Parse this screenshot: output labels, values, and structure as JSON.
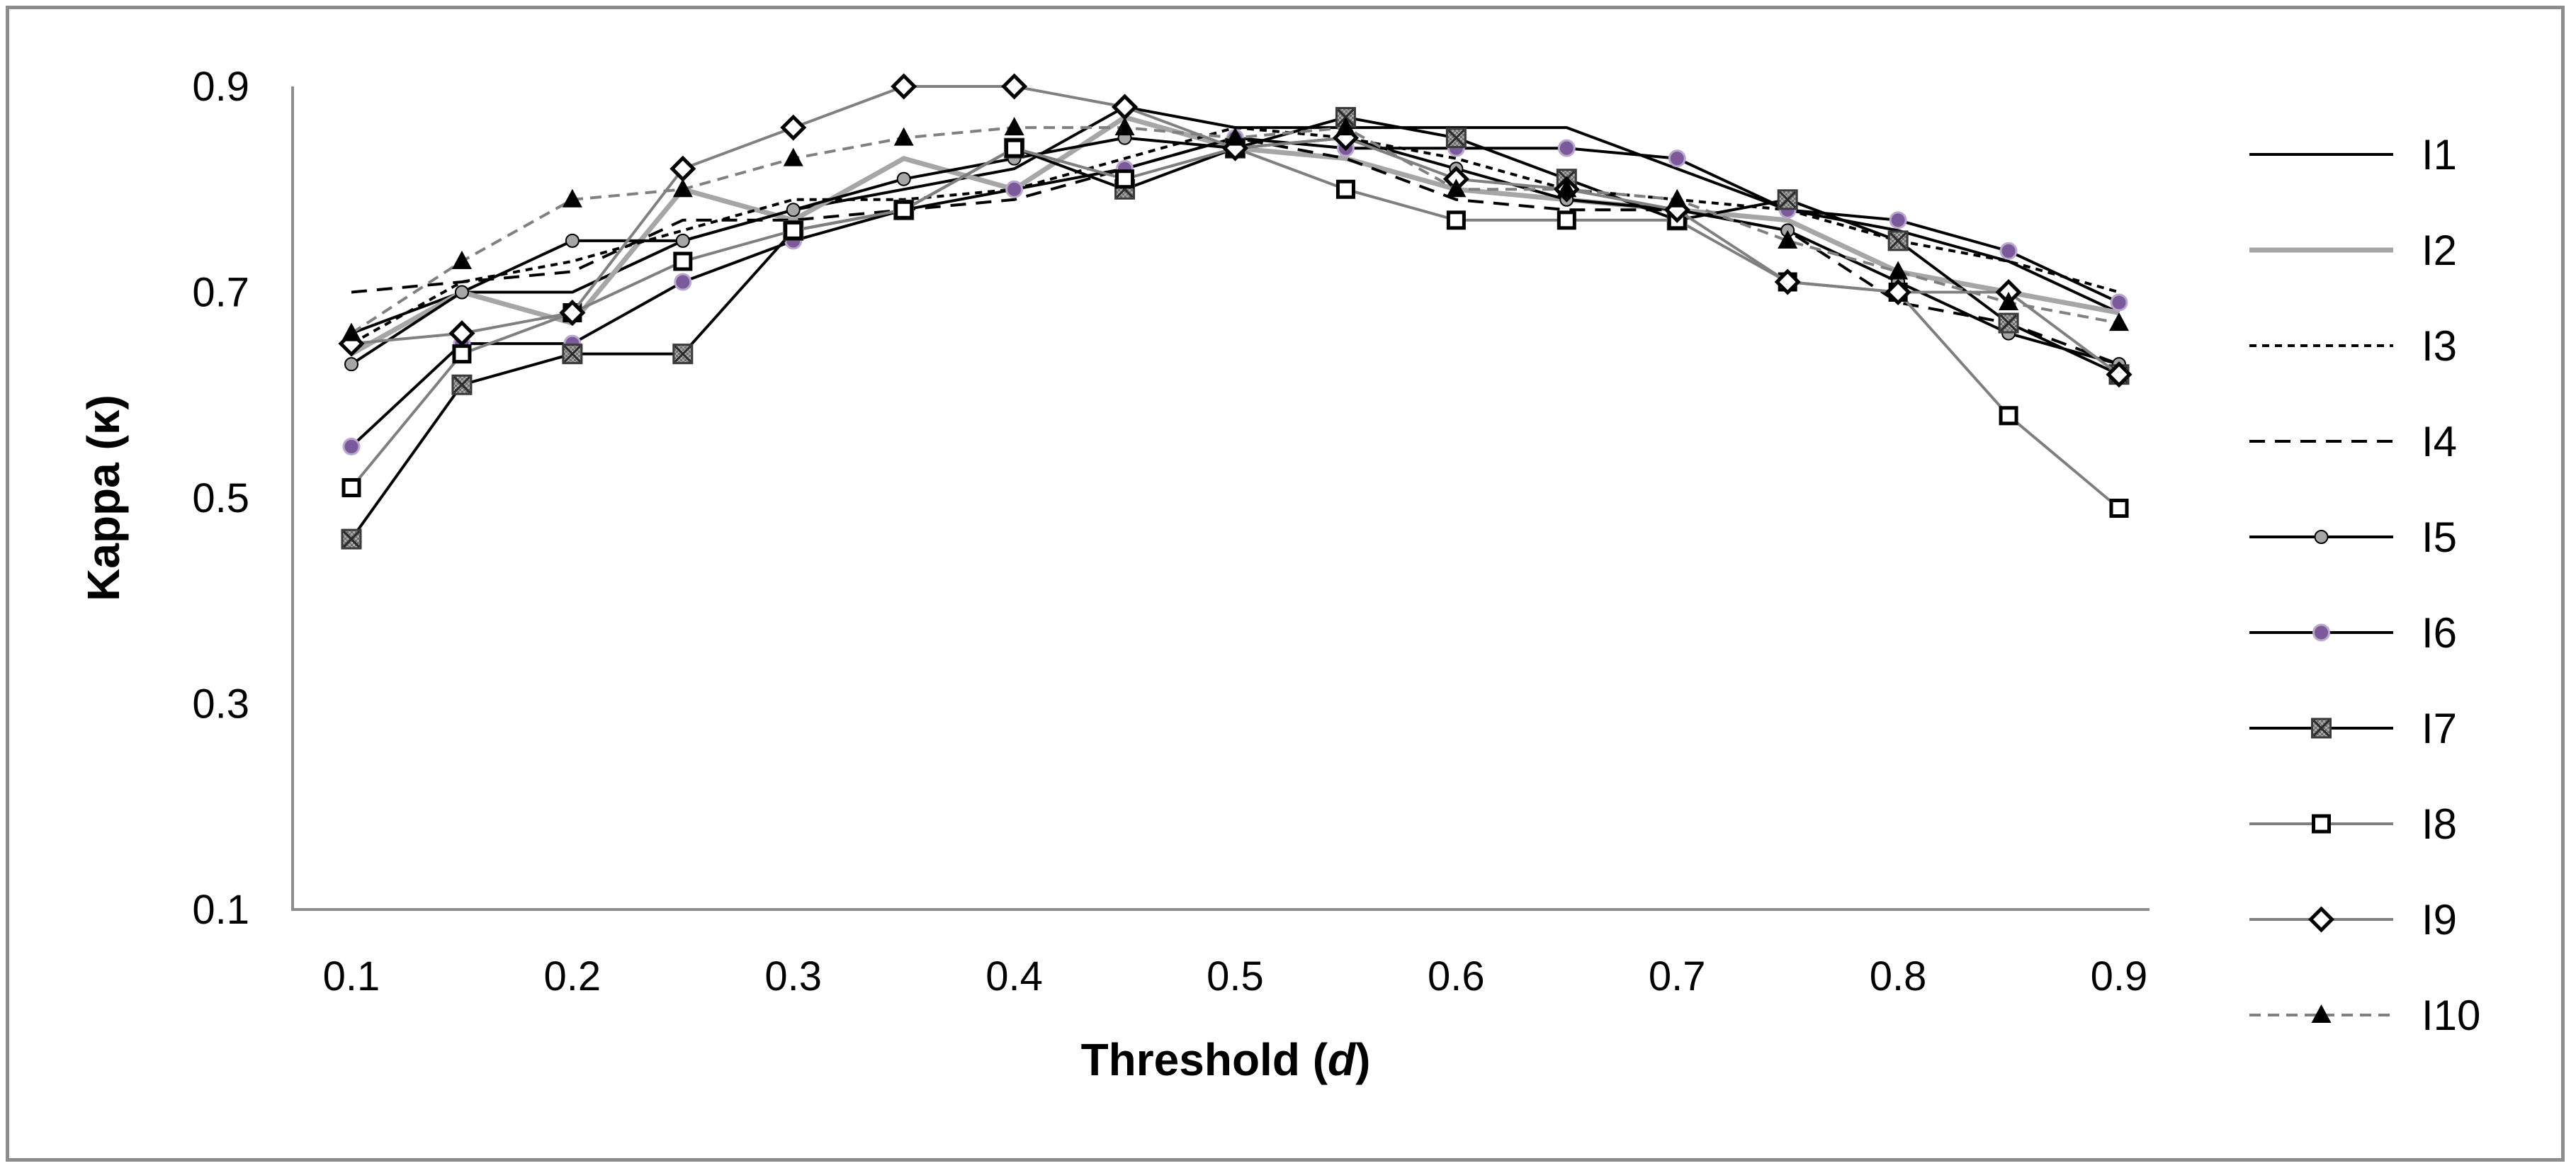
{
  "chart_data": {
    "type": "line",
    "title": "",
    "xlabel": "Threshold (",
    "xlabel_var": "d",
    "xlabel_close": ")",
    "ylabel": "Kappa (κ)",
    "x": [
      0.1,
      0.15,
      0.2,
      0.25,
      0.3,
      0.35,
      0.4,
      0.45,
      0.5,
      0.55,
      0.6,
      0.65,
      0.7,
      0.75,
      0.8,
      0.85,
      0.9
    ],
    "xlim": [
      0.1,
      0.9
    ],
    "ylim": [
      0.1,
      0.9
    ],
    "x_ticks": [
      "0.1",
      "0.2",
      "0.3",
      "0.4",
      "0.5",
      "0.6",
      "0.7",
      "0.8",
      "0.9"
    ],
    "y_ticks": [
      "0.1",
      "0.3",
      "0.5",
      "0.7",
      "0.9"
    ],
    "legend_position": "right",
    "grid": false,
    "series": [
      {
        "name": "I1",
        "color": "#000000",
        "dash": "none",
        "marker": "none",
        "values": [
          0.66,
          0.7,
          0.7,
          0.75,
          0.78,
          0.8,
          0.82,
          0.88,
          0.86,
          0.86,
          0.86,
          0.86,
          0.82,
          0.78,
          0.76,
          0.73,
          0.68
        ]
      },
      {
        "name": "I2",
        "color": "#a6a6a6",
        "dash": "none",
        "marker": "none",
        "values": [
          0.64,
          0.7,
          0.67,
          0.8,
          0.77,
          0.83,
          0.8,
          0.87,
          0.84,
          0.83,
          0.8,
          0.79,
          0.78,
          0.77,
          0.72,
          0.7,
          0.68
        ]
      },
      {
        "name": "I3",
        "color": "#000000",
        "dash": "short",
        "marker": "none",
        "values": [
          0.65,
          0.71,
          0.73,
          0.76,
          0.79,
          0.79,
          0.8,
          0.83,
          0.86,
          0.85,
          0.83,
          0.8,
          0.79,
          0.78,
          0.75,
          0.73,
          0.7
        ]
      },
      {
        "name": "I4",
        "color": "#000000",
        "dash": "long",
        "marker": "none",
        "values": [
          0.7,
          0.71,
          0.72,
          0.77,
          0.77,
          0.78,
          0.79,
          0.82,
          0.85,
          0.83,
          0.79,
          0.78,
          0.78,
          0.76,
          0.69,
          0.67,
          0.63
        ]
      },
      {
        "name": "I5",
        "color": "#000000",
        "dash": "none",
        "marker": "dot-gray",
        "values": [
          0.63,
          0.7,
          0.75,
          0.75,
          0.78,
          0.81,
          0.83,
          0.85,
          0.84,
          0.85,
          0.82,
          0.79,
          0.78,
          0.76,
          0.71,
          0.66,
          0.63
        ]
      },
      {
        "name": "I6",
        "color": "#000000",
        "dash": "none",
        "marker": "dot-purple",
        "values": [
          0.55,
          0.65,
          0.65,
          0.71,
          0.75,
          0.78,
          0.8,
          0.82,
          0.85,
          0.84,
          0.84,
          0.84,
          0.83,
          0.78,
          0.77,
          0.74,
          0.69
        ]
      },
      {
        "name": "I7",
        "color": "#000000",
        "dash": "none",
        "marker": "square-x",
        "values": [
          0.46,
          0.61,
          0.64,
          0.64,
          0.76,
          0.78,
          0.84,
          0.8,
          0.84,
          0.87,
          0.85,
          0.81,
          0.77,
          0.79,
          0.75,
          0.67,
          0.62
        ]
      },
      {
        "name": "I8",
        "color": "#7f7f7f",
        "dash": "none",
        "marker": "square",
        "values": [
          0.51,
          0.64,
          0.68,
          0.73,
          0.76,
          0.78,
          0.84,
          0.81,
          0.84,
          0.8,
          0.77,
          0.77,
          0.77,
          0.71,
          0.7,
          0.58,
          0.49
        ]
      },
      {
        "name": "I9",
        "color": "#808080",
        "dash": "none",
        "marker": "diamond",
        "values": [
          0.65,
          0.66,
          0.68,
          0.82,
          0.86,
          0.9,
          0.9,
          0.88,
          0.84,
          0.85,
          0.81,
          0.8,
          0.78,
          0.71,
          0.7,
          0.7,
          0.62
        ]
      },
      {
        "name": "I10",
        "color": "#808080",
        "dash": "medium",
        "marker": "triangle",
        "values": [
          0.66,
          0.73,
          0.79,
          0.8,
          0.83,
          0.85,
          0.86,
          0.86,
          0.85,
          0.86,
          0.8,
          0.8,
          0.79,
          0.75,
          0.72,
          0.69,
          0.67
        ]
      }
    ]
  }
}
